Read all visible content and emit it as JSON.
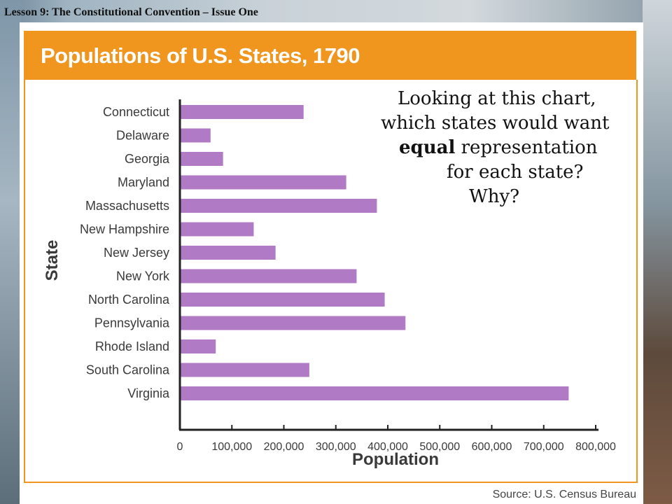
{
  "slide": {
    "lesson_title": "Lesson 9: The Constitutional Convention – Issue One",
    "question": {
      "line1": "Looking at this chart,",
      "line2": "which states would want",
      "line3_em": "equal",
      "line3_rest": " representation",
      "line4": "for each state?",
      "line5": "Why?"
    }
  },
  "colors": {
    "header": "#f0951e",
    "bar": "#b07ac5",
    "axis": "#222222",
    "label": "#3a3a3a"
  },
  "chart_data": {
    "type": "bar",
    "orientation": "horizontal",
    "title": "Populations of U.S. States, 1790",
    "xlabel": "Population",
    "ylabel": "State",
    "source": "Source: U.S. Census Bureau",
    "categories": [
      "Connecticut",
      "Delaware",
      "Georgia",
      "Maryland",
      "Massachusetts",
      "New Hampshire",
      "New Jersey",
      "New York",
      "North Carolina",
      "Pennsylvania",
      "Rhode Island",
      "South Carolina",
      "Virginia"
    ],
    "values": [
      238000,
      59000,
      83000,
      320000,
      379000,
      142000,
      184000,
      340000,
      394000,
      434000,
      69000,
      249000,
      748000
    ],
    "xlim": [
      0,
      800000
    ],
    "xticks": [
      0,
      100000,
      200000,
      300000,
      400000,
      500000,
      600000,
      700000,
      800000
    ],
    "xtick_labels": [
      "0",
      "100,000",
      "200,000",
      "300,000",
      "400,000",
      "500,000",
      "600,000",
      "700,000",
      "800,000"
    ],
    "grid": false,
    "legend": "none"
  }
}
